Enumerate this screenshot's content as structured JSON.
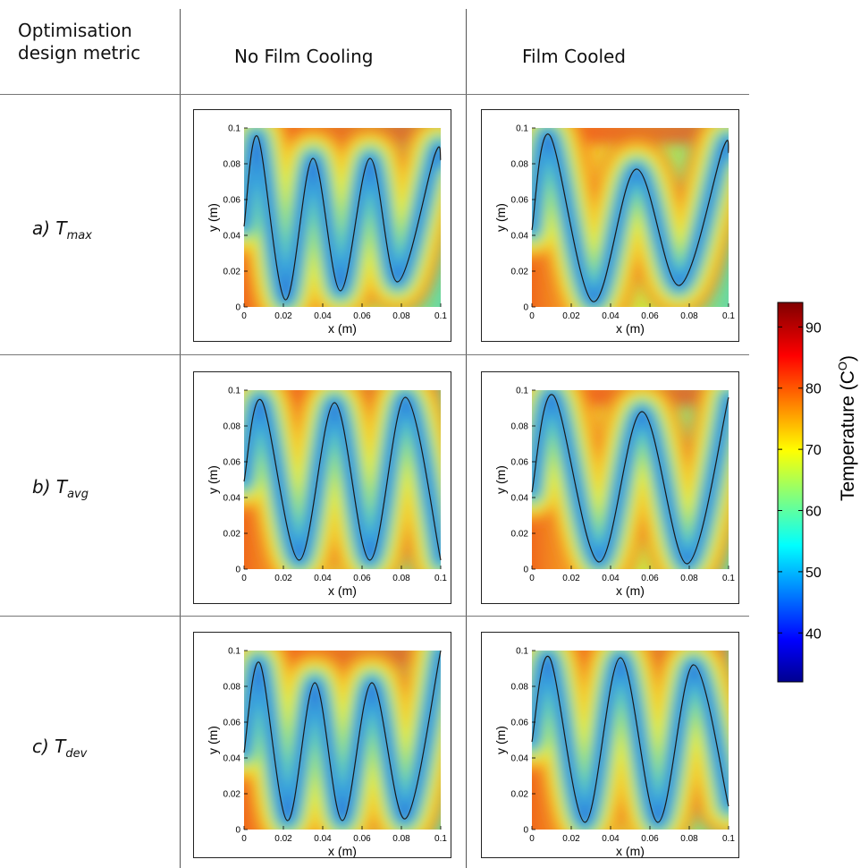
{
  "header": {
    "metric_label_line1": "Optimisation",
    "metric_label_line2": "design metric",
    "col1": "No Film Cooling",
    "col2": "Film Cooled"
  },
  "rows": [
    {
      "prefix": "a) T",
      "sub": "max"
    },
    {
      "prefix": "b) T",
      "sub": "avg"
    },
    {
      "prefix": "c) T",
      "sub": "dev"
    }
  ],
  "colorbar": {
    "title": "Temperature (C",
    "title_sup": "O",
    "title_close": ")",
    "min": 32,
    "max": 94,
    "ticks": [
      40,
      50,
      60,
      70,
      80,
      90
    ],
    "colormap": "jet"
  },
  "chart_data": [
    {
      "type": "heatmap",
      "row": "a) Tmax",
      "column": "No Film Cooling",
      "xlabel": "x (m)",
      "ylabel": "y (m)",
      "xlim": [
        0,
        0.1
      ],
      "ylim": [
        0,
        0.1
      ],
      "x_ticks": [
        0,
        0.02,
        0.04,
        0.06,
        0.08,
        0.1
      ],
      "y_ticks": [
        0,
        0.02,
        0.04,
        0.06,
        0.08,
        0.1
      ],
      "channel_curve": {
        "x": [
          0,
          0.007,
          0.021,
          0.035,
          0.049,
          0.064,
          0.078,
          0.097,
          0.1
        ],
        "y": [
          0.045,
          0.095,
          0.004,
          0.083,
          0.009,
          0.083,
          0.014,
          0.085,
          0.082
        ]
      }
    },
    {
      "type": "heatmap",
      "row": "a) Tmax",
      "column": "Film Cooled",
      "xlabel": "x (m)",
      "ylabel": "y (m)",
      "xlim": [
        0,
        0.1
      ],
      "ylim": [
        0,
        0.1
      ],
      "x_ticks": [
        0,
        0.02,
        0.04,
        0.06,
        0.08,
        0.1
      ],
      "y_ticks": [
        0,
        0.02,
        0.04,
        0.06,
        0.08,
        0.1
      ],
      "channel_curve": {
        "x": [
          0,
          0.009,
          0.031,
          0.053,
          0.075,
          0.097,
          0.1
        ],
        "y": [
          0.043,
          0.096,
          0.003,
          0.077,
          0.012,
          0.088,
          0.086
        ]
      }
    },
    {
      "type": "heatmap",
      "row": "b) Tavg",
      "column": "No Film Cooling",
      "xlabel": "x (m)",
      "ylabel": "y (m)",
      "xlim": [
        0,
        0.1
      ],
      "ylim": [
        0,
        0.1
      ],
      "x_ticks": [
        0,
        0.02,
        0.04,
        0.06,
        0.08,
        0.1
      ],
      "y_ticks": [
        0,
        0.02,
        0.04,
        0.06,
        0.08,
        0.1
      ],
      "channel_curve": {
        "x": [
          0,
          0.009,
          0.028,
          0.046,
          0.064,
          0.082,
          0.1
        ],
        "y": [
          0.049,
          0.094,
          0.005,
          0.093,
          0.005,
          0.096,
          0.005
        ]
      }
    },
    {
      "type": "heatmap",
      "row": "b) Tavg",
      "column": "Film Cooled",
      "xlabel": "x (m)",
      "ylabel": "y (m)",
      "xlim": [
        0,
        0.1
      ],
      "ylim": [
        0,
        0.1
      ],
      "x_ticks": [
        0,
        0.02,
        0.04,
        0.06,
        0.08,
        0.1
      ],
      "y_ticks": [
        0,
        0.02,
        0.04,
        0.06,
        0.08,
        0.1
      ],
      "channel_curve": {
        "x": [
          0,
          0.011,
          0.034,
          0.056,
          0.079,
          0.1
        ],
        "y": [
          0.043,
          0.097,
          0.004,
          0.088,
          0.003,
          0.096
        ]
      }
    },
    {
      "type": "heatmap",
      "row": "c) Tdev",
      "column": "No Film Cooling",
      "xlabel": "x (m)",
      "ylabel": "y (m)",
      "xlim": [
        0,
        0.1
      ],
      "ylim": [
        0,
        0.1
      ],
      "x_ticks": [
        0,
        0.02,
        0.04,
        0.06,
        0.08,
        0.1
      ],
      "y_ticks": [
        0,
        0.02,
        0.04,
        0.06,
        0.08,
        0.1
      ],
      "channel_curve": {
        "x": [
          0,
          0.008,
          0.022,
          0.036,
          0.05,
          0.065,
          0.082,
          0.1
        ],
        "y": [
          0.043,
          0.093,
          0.005,
          0.082,
          0.005,
          0.082,
          0.006,
          0.1
        ]
      }
    },
    {
      "type": "heatmap",
      "row": "c) Tdev",
      "column": "Film Cooled",
      "xlabel": "x (m)",
      "ylabel": "y (m)",
      "xlim": [
        0,
        0.1
      ],
      "ylim": [
        0,
        0.1
      ],
      "x_ticks": [
        0,
        0.02,
        0.04,
        0.06,
        0.08,
        0.1
      ],
      "y_ticks": [
        0,
        0.02,
        0.04,
        0.06,
        0.08,
        0.1
      ],
      "channel_curve": {
        "x": [
          0,
          0.009,
          0.027,
          0.045,
          0.064,
          0.082,
          0.1
        ],
        "y": [
          0.049,
          0.096,
          0.004,
          0.096,
          0.004,
          0.092,
          0.013
        ]
      }
    }
  ]
}
